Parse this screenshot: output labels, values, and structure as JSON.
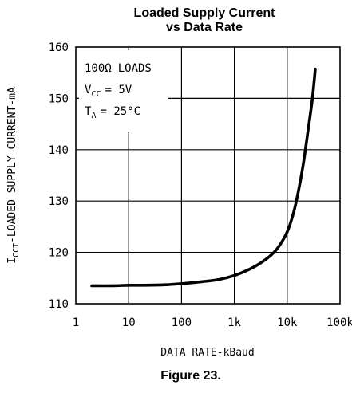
{
  "chart_data": {
    "type": "line",
    "title": "Loaded Supply Current",
    "subtitle": "vs Data Rate",
    "xlabel": "DATA RATE-kBaud",
    "ylabel": {
      "base": "I",
      "sub": "CCT",
      "rest": "-LOADED SUPPLY CURRENT-mA"
    },
    "xscale": "log",
    "xlim": [
      1,
      100000
    ],
    "ylim": [
      110,
      160
    ],
    "grid": true,
    "x_ticks": [
      {
        "value": 1,
        "label": "1"
      },
      {
        "value": 10,
        "label": "10"
      },
      {
        "value": 100,
        "label": "100"
      },
      {
        "value": 1000,
        "label": "1k"
      },
      {
        "value": 10000,
        "label": "10k"
      },
      {
        "value": 100000,
        "label": "100k"
      }
    ],
    "y_ticks": [
      {
        "value": 110,
        "label": "110"
      },
      {
        "value": 120,
        "label": "120"
      },
      {
        "value": 130,
        "label": "130"
      },
      {
        "value": 140,
        "label": "140"
      },
      {
        "value": 150,
        "label": "150"
      },
      {
        "value": 160,
        "label": "160"
      }
    ],
    "series": [
      {
        "x": [
          2,
          5,
          10,
          20,
          50,
          100,
          200,
          500,
          1000,
          2000,
          3000,
          5000,
          7000,
          10000,
          13000,
          16000,
          20000,
          25000,
          30000,
          34000
        ],
        "y": [
          113.5,
          113.5,
          113.6,
          113.6,
          113.7,
          113.9,
          114.2,
          114.7,
          115.5,
          116.8,
          117.8,
          119.5,
          121.2,
          124.0,
          127.5,
          131.5,
          137.0,
          144.0,
          150.0,
          155.7
        ]
      }
    ],
    "annotations": [
      {
        "type": "load",
        "value": "100Ω",
        "text": "LOADS"
      },
      {
        "type": "sub",
        "base": "V",
        "sub": "CC",
        "text": "= 5V"
      },
      {
        "type": "sub",
        "base": "T",
        "sub": "A",
        "text": "= 25°C"
      }
    ],
    "legend_placement": "top-left"
  },
  "caption": "Figure 23."
}
